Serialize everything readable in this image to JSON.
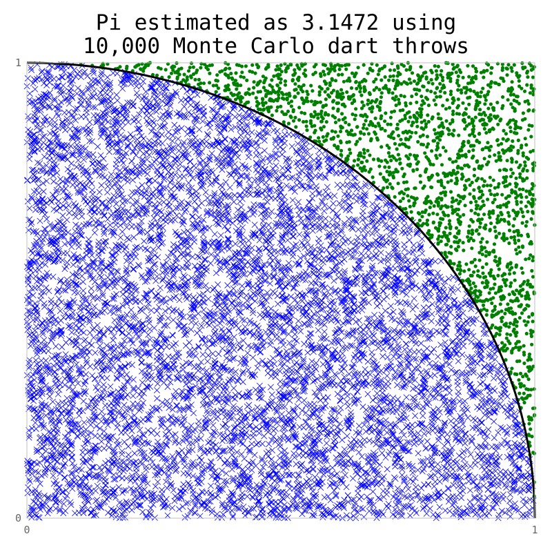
{
  "chart_data": {
    "type": "scatter",
    "title_line1": "Pi estimated as 3.1472 using",
    "title_line2": "10,000 Monte Carlo dart throws",
    "title": "Pi estimated as 3.1472 using 10,000 Monte Carlo dart throws",
    "xlabel": "",
    "ylabel": "",
    "xlim": [
      0,
      1
    ],
    "ylim": [
      0,
      1
    ],
    "x_ticks": [
      "0",
      "1"
    ],
    "y_ticks": [
      "0",
      "1"
    ],
    "grid": false,
    "n_points": 10000,
    "pi_estimate": 3.1472,
    "series": [
      {
        "name": "",
        "marker": "x",
        "color": "#0000ff",
        "region": "inside quarter circle",
        "count": 7868
      },
      {
        "name": "",
        "marker": "dot",
        "color": "#008000",
        "region": "outside quarter circle",
        "count": 2132
      }
    ],
    "curve": {
      "equation": "x^2 + y^2 = 1",
      "color": "#000000"
    }
  }
}
